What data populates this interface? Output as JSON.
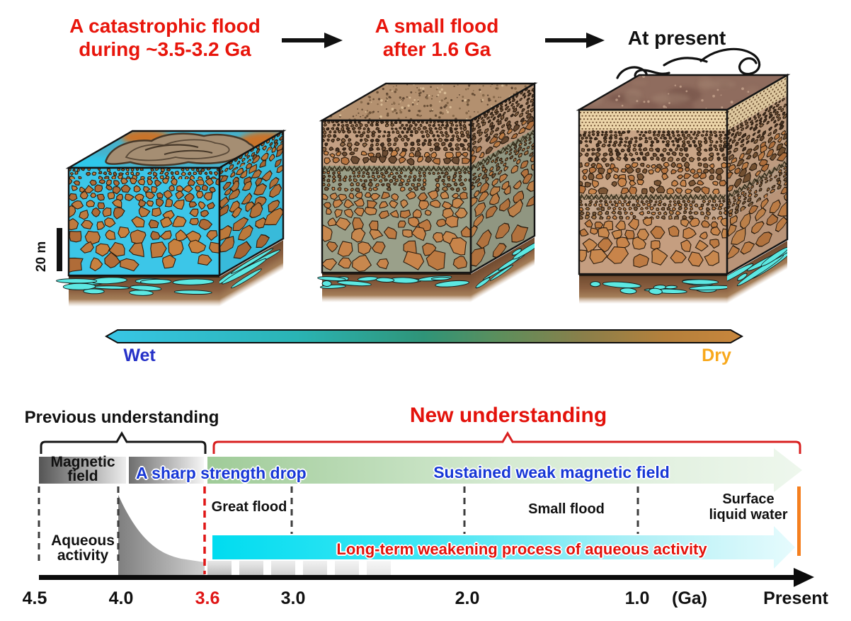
{
  "figure": {
    "stages": [
      {
        "line1": "A catastrophic flood",
        "line2": "during ~3.5-3.2 Ga"
      },
      {
        "line1": "A small flood",
        "line2": "after 1.6 Ga"
      },
      {
        "line1": "At present",
        "line2": ""
      }
    ],
    "scale_label": "20 m",
    "moisture": {
      "wet": "Wet",
      "dry": "Dry"
    }
  },
  "timeline": {
    "previous_header": "Previous understanding",
    "new_header": "New understanding",
    "magnetic": {
      "line1": "Magnetic",
      "line2": "field"
    },
    "aqueous": {
      "line1": "Aqueous",
      "line2": "activity"
    },
    "sharp_drop": "A sharp strength drop",
    "sustained": "Sustained weak magnetic field",
    "great_flood": "Great flood",
    "small_flood": "Small flood",
    "surface": {
      "line1": "Surface",
      "line2": "liquid water"
    },
    "longterm": "Long-term weakening process of aqueous activity",
    "ticks": [
      "4.5",
      "4.0",
      "3.6",
      "3.0",
      "2.0",
      "1.0"
    ],
    "unit": "(Ga)",
    "present": "Present"
  },
  "palette": {
    "headline_red": "#e8150b",
    "label_blue": "#1737d6",
    "wet_blue": "#2531c8",
    "dry_orange": "#f8a81b",
    "timeline_red": "#d81f1f",
    "water_cyan": "#3cc6e8",
    "rock_brown": "#c8824a",
    "cyan_bar": "#00dcf0",
    "green_bar": "#a2cc9a",
    "orange_marker": "#f57f1e"
  }
}
